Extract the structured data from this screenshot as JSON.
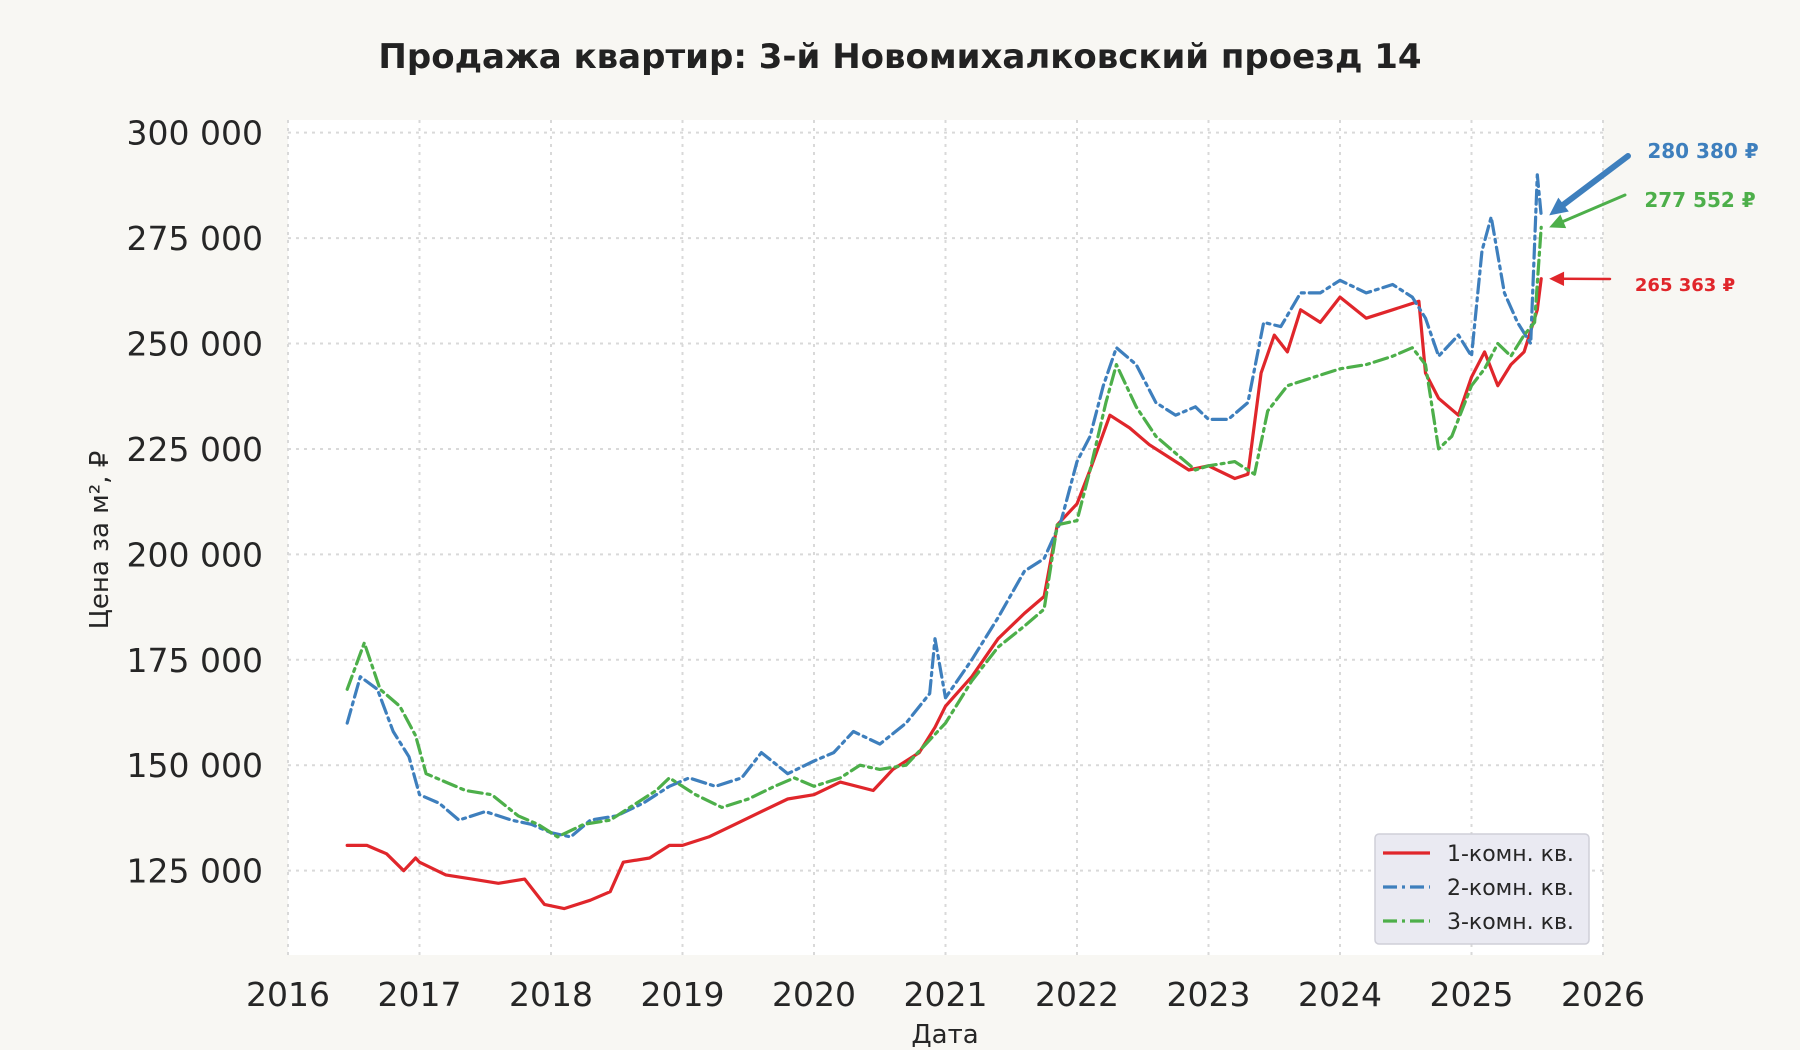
{
  "chart_data": {
    "type": "line",
    "title": "Продажа квартир: 3-й Новомихалковский проезд 14",
    "xlabel": "Дата",
    "ylabel": "Цена за м², ₽",
    "xlim": [
      2016.0,
      2026.0
    ],
    "ylim": [
      105000,
      303000
    ],
    "x_ticks": [
      2016,
      2017,
      2018,
      2019,
      2020,
      2021,
      2022,
      2023,
      2024,
      2025,
      2026
    ],
    "x_tick_labels": [
      "2016",
      "2017",
      "2018",
      "2019",
      "2020",
      "2021",
      "2022",
      "2023",
      "2024",
      "2025",
      "2026"
    ],
    "y_ticks": [
      125000,
      150000,
      175000,
      200000,
      225000,
      250000,
      275000,
      300000
    ],
    "y_tick_labels": [
      "125 000",
      "150 000",
      "175 000",
      "200 000",
      "225 000",
      "250 000",
      "275 000",
      "300 000"
    ],
    "grid": true,
    "legend_position": "bottom-right",
    "series": [
      {
        "name": "1-комн. кв.",
        "color": "#e0262b",
        "style": "solid",
        "x": [
          2016.45,
          2016.6,
          2016.75,
          2016.88,
          2016.97,
          2017.0,
          2017.2,
          2017.4,
          2017.6,
          2017.8,
          2017.95,
          2018.1,
          2018.3,
          2018.45,
          2018.55,
          2018.75,
          2018.9,
          2019.0,
          2019.2,
          2019.4,
          2019.6,
          2019.8,
          2020.0,
          2020.2,
          2020.45,
          2020.6,
          2020.8,
          2020.92,
          2021.0,
          2021.2,
          2021.4,
          2021.6,
          2021.75,
          2021.85,
          2022.0,
          2022.1,
          2022.25,
          2022.4,
          2022.55,
          2022.7,
          2022.85,
          2023.0,
          2023.2,
          2023.3,
          2023.4,
          2023.5,
          2023.6,
          2023.7,
          2023.85,
          2024.0,
          2024.2,
          2024.4,
          2024.6,
          2024.65,
          2024.75,
          2024.9,
          2025.0,
          2025.1,
          2025.2,
          2025.3,
          2025.4,
          2025.5,
          2025.53
        ],
        "y": [
          131000,
          131000,
          129000,
          125000,
          128000,
          127000,
          124000,
          123000,
          122000,
          123000,
          117000,
          116000,
          118000,
          120000,
          127000,
          128000,
          131000,
          131000,
          133000,
          136000,
          139000,
          142000,
          143000,
          146000,
          144000,
          149000,
          153000,
          159000,
          164000,
          171000,
          180000,
          186000,
          190000,
          207000,
          212000,
          220000,
          233000,
          230000,
          226000,
          223000,
          220000,
          221000,
          218000,
          219000,
          243000,
          252000,
          248000,
          258000,
          255000,
          261000,
          256000,
          258000,
          260000,
          243000,
          237000,
          233000,
          242000,
          248000,
          240000,
          245000,
          248000,
          258000,
          265363
        ]
      },
      {
        "name": "2-комн. кв.",
        "color": "#3e7fbd",
        "style": "dashdot",
        "x": [
          2016.45,
          2016.55,
          2016.68,
          2016.8,
          2016.92,
          2017.0,
          2017.15,
          2017.3,
          2017.5,
          2017.7,
          2017.85,
          2018.0,
          2018.15,
          2018.3,
          2018.5,
          2018.7,
          2018.9,
          2019.05,
          2019.25,
          2019.45,
          2019.6,
          2019.8,
          2020.0,
          2020.15,
          2020.3,
          2020.5,
          2020.7,
          2020.88,
          2020.92,
          2021.0,
          2021.2,
          2021.4,
          2021.6,
          2021.75,
          2021.88,
          2022.0,
          2022.1,
          2022.2,
          2022.3,
          2022.45,
          2022.6,
          2022.75,
          2022.9,
          2023.0,
          2023.15,
          2023.3,
          2023.42,
          2023.55,
          2023.7,
          2023.85,
          2024.0,
          2024.2,
          2024.4,
          2024.55,
          2024.65,
          2024.75,
          2024.9,
          2025.0,
          2025.08,
          2025.15,
          2025.25,
          2025.35,
          2025.45,
          2025.5,
          2025.53
        ],
        "y": [
          160000,
          171000,
          168000,
          158000,
          152000,
          143000,
          141000,
          137000,
          139000,
          137000,
          136000,
          134000,
          133000,
          137000,
          138000,
          141000,
          145000,
          147000,
          145000,
          147000,
          153000,
          148000,
          151000,
          153000,
          158000,
          155000,
          160000,
          167000,
          180000,
          166000,
          175000,
          185000,
          196000,
          199000,
          208000,
          222000,
          228000,
          240000,
          249000,
          245000,
          236000,
          233000,
          235000,
          232000,
          232000,
          236000,
          255000,
          254000,
          262000,
          262000,
          265000,
          262000,
          264000,
          261000,
          256000,
          247000,
          252000,
          247000,
          272000,
          280000,
          262000,
          255000,
          250000,
          290000,
          280380
        ]
      },
      {
        "name": "3-комн. кв.",
        "color": "#4daf4a",
        "style": "dashdot",
        "x": [
          2016.45,
          2016.58,
          2016.7,
          2016.85,
          2016.97,
          2017.05,
          2017.2,
          2017.35,
          2017.55,
          2017.75,
          2017.9,
          2018.05,
          2018.25,
          2018.45,
          2018.6,
          2018.8,
          2018.9,
          2019.1,
          2019.3,
          2019.5,
          2019.7,
          2019.85,
          2020.0,
          2020.2,
          2020.35,
          2020.5,
          2020.7,
          2020.85,
          2021.0,
          2021.2,
          2021.4,
          2021.6,
          2021.75,
          2021.85,
          2022.0,
          2022.1,
          2022.22,
          2022.3,
          2022.45,
          2022.6,
          2022.75,
          2022.9,
          2023.0,
          2023.2,
          2023.35,
          2023.45,
          2023.6,
          2023.8,
          2024.0,
          2024.2,
          2024.4,
          2024.55,
          2024.65,
          2024.75,
          2024.85,
          2025.0,
          2025.1,
          2025.2,
          2025.3,
          2025.4,
          2025.48,
          2025.53
        ],
        "y": [
          168000,
          179000,
          168000,
          164000,
          157000,
          148000,
          146000,
          144000,
          143000,
          138000,
          136000,
          133000,
          136000,
          137000,
          140000,
          144000,
          147000,
          143000,
          140000,
          142000,
          145000,
          147000,
          145000,
          147000,
          150000,
          149000,
          150000,
          155000,
          160000,
          170000,
          178000,
          183000,
          187000,
          207000,
          208000,
          220000,
          236000,
          245000,
          235000,
          228000,
          224000,
          220000,
          221000,
          222000,
          219000,
          234000,
          240000,
          242000,
          244000,
          245000,
          247000,
          249000,
          245000,
          225000,
          228000,
          240000,
          244000,
          250000,
          247000,
          252000,
          255000,
          277552
        ]
      }
    ],
    "annotations": [
      {
        "series": "2-комн. кв.",
        "text": "280 380 ₽",
        "color": "#3e7fbd"
      },
      {
        "series": "3-комн. кв.",
        "text": "277 552 ₽",
        "color": "#4daf4a"
      },
      {
        "series": "1-комн. кв.",
        "text": "265 363 ₽",
        "color": "#e0262b"
      }
    ]
  }
}
